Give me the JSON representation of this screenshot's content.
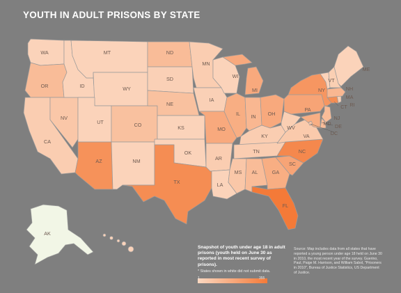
{
  "title": "YOUTH IN ADULT PRISONS BY STATE",
  "legend": {
    "title": "Snapshot of youth under age 18 in adult prisons (youth held on June 30 as reported in most recent survey of prisons).",
    "note": "* States shown in white did not submit data.",
    "min": "1",
    "max": "355",
    "min_color": "#fbd8c1",
    "max_color": "#f47a38"
  },
  "source": "Source: Map includes data from all states that have reported a young person under age 18 held on June 30 in 2010, the most recent year of the survey. Guerino, Paul, Paige M. Harrison, and William Sabol, \"Prisoners in 2010\", Bureau of Justice Statistics, US Department of Justice.",
  "colors": {
    "background": "#7f7f7f",
    "no_data": "#f2f6e6",
    "border": "#9a9a9a"
  },
  "states": [
    {
      "code": "WA",
      "label": "WA",
      "shade": 0.05
    },
    {
      "code": "OR",
      "label": "OR",
      "shade": 0.3
    },
    {
      "code": "CA",
      "label": "CA",
      "shade": 0.12
    },
    {
      "code": "NV",
      "label": "NV",
      "shade": 0.18
    },
    {
      "code": "ID",
      "label": "ID",
      "shade": 0.05
    },
    {
      "code": "MT",
      "label": "MT",
      "shade": 0.05
    },
    {
      "code": "WY",
      "label": "WY",
      "shade": 0.05
    },
    {
      "code": "UT",
      "label": "UT",
      "shade": 0.05
    },
    {
      "code": "AZ",
      "label": "AZ",
      "shade": 0.75
    },
    {
      "code": "CO",
      "label": "CO",
      "shade": 0.25
    },
    {
      "code": "NM",
      "label": "NM",
      "shade": 0.05
    },
    {
      "code": "ND",
      "label": "ND",
      "shade": 0.3
    },
    {
      "code": "SD",
      "label": "SD",
      "shade": 0.08
    },
    {
      "code": "NE",
      "label": "NE",
      "shade": 0.25
    },
    {
      "code": "KS",
      "label": "KS",
      "shade": 0.05
    },
    {
      "code": "OK",
      "label": "OK",
      "shade": 0.05
    },
    {
      "code": "TX",
      "label": "TX",
      "shade": 0.8
    },
    {
      "code": "MN",
      "label": "MN",
      "shade": 0.12
    },
    {
      "code": "IA",
      "label": "IA",
      "shade": 0.08
    },
    {
      "code": "MO",
      "label": "MO",
      "shade": 0.5
    },
    {
      "code": "AR",
      "label": "AR",
      "shade": 0.12
    },
    {
      "code": "LA",
      "label": "LA",
      "shade": 0.05
    },
    {
      "code": "WI",
      "label": "WI",
      "shade": 0.05
    },
    {
      "code": "IL",
      "label": "IL",
      "shade": 0.45
    },
    {
      "code": "MI",
      "label": "MI",
      "shade": 0.5
    },
    {
      "code": "IN",
      "label": "IN",
      "shade": 0.35
    },
    {
      "code": "OH",
      "label": "OH",
      "shade": 0.5
    },
    {
      "code": "KY",
      "label": "KY",
      "shade": 0.12
    },
    {
      "code": "TN",
      "label": "TN",
      "shade": 0.12
    },
    {
      "code": "MS",
      "label": "MS",
      "shade": 0.18
    },
    {
      "code": "AL",
      "label": "AL",
      "shade": 0.3
    },
    {
      "code": "GA",
      "label": "GA",
      "shade": 0.45
    },
    {
      "code": "FL",
      "label": "FL",
      "shade": 1.0
    },
    {
      "code": "SC",
      "label": "SC",
      "shade": 0.55
    },
    {
      "code": "NC",
      "label": "NC",
      "shade": 0.85
    },
    {
      "code": "VA",
      "label": "VA",
      "shade": 0.15
    },
    {
      "code": "WV",
      "label": "WV",
      "shade": 0.1
    },
    {
      "code": "PA",
      "label": "PA",
      "shade": 0.55
    },
    {
      "code": "NY",
      "label": "NY",
      "shade": 0.7
    },
    {
      "code": "NJ",
      "label": "NJ",
      "shade": 0.3
    },
    {
      "code": "DE",
      "label": "DE",
      "shade": 0.3
    },
    {
      "code": "MD",
      "label": "MD",
      "shade": 0.45
    },
    {
      "code": "DC",
      "label": "DC",
      "shade": 0.2
    },
    {
      "code": "CT",
      "label": "CT",
      "shade": 0.8
    },
    {
      "code": "RI",
      "label": "RI",
      "shade": 0.1
    },
    {
      "code": "MA",
      "label": "MA",
      "shade": 0.35
    },
    {
      "code": "VT",
      "label": "VT",
      "shade": 0.05
    },
    {
      "code": "NH",
      "label": "NH",
      "shade": 0.1
    },
    {
      "code": "ME",
      "label": "ME",
      "shade": 0.05
    },
    {
      "code": "AK",
      "label": "AK",
      "shade": null
    },
    {
      "code": "HI",
      "label": "",
      "shade": 0.05
    }
  ]
}
